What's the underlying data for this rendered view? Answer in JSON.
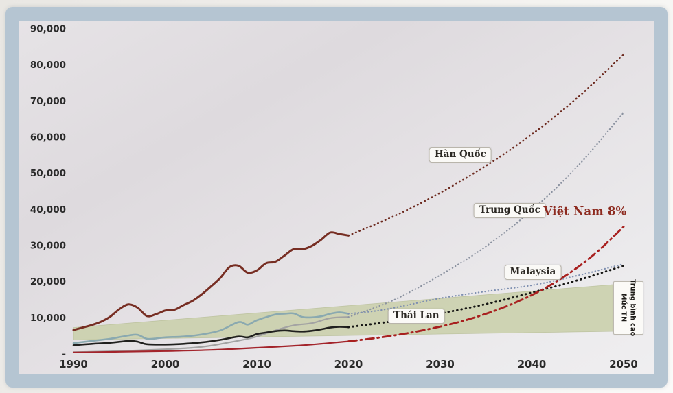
{
  "chart_data": {
    "type": "line",
    "title": "",
    "x_range": [
      1990,
      2050
    ],
    "y_range": [
      0,
      90000
    ],
    "grid": false,
    "legend_position": "inline-annotations",
    "x_ticks": [
      {
        "label": "1990",
        "year": 1990
      },
      {
        "label": "2000",
        "year": 2000
      },
      {
        "label": "2010",
        "year": 2010
      },
      {
        "label": "2020",
        "year": 2020
      },
      {
        "label": "2030",
        "year": 2030
      },
      {
        "label": "2040",
        "year": 2040
      },
      {
        "label": "2050",
        "year": 2050
      }
    ],
    "y_ticks": [
      {
        "label": "90,000",
        "value": 90000
      },
      {
        "label": "80,000",
        "value": 80000
      },
      {
        "label": "70,000",
        "value": 70000
      },
      {
        "label": "60,000",
        "value": 60000
      },
      {
        "label": "50,000",
        "value": 50000
      },
      {
        "label": "40,000",
        "value": 40000
      },
      {
        "label": "30,000",
        "value": 30000
      },
      {
        "label": "20,000",
        "value": 20000
      },
      {
        "label": "10,000",
        "value": 10000
      },
      {
        "label": "-",
        "value": 0
      }
    ],
    "band": {
      "name": "upper-middle-income-band",
      "color": "#c9cfab",
      "edge_color": "#b3ba92",
      "points": [
        [
          1990,
          7300
        ],
        [
          2050,
          19400
        ],
        [
          2050,
          6300
        ],
        [
          1990,
          3900
        ]
      ]
    },
    "series": [
      {
        "id": "korea-history",
        "country": "Hàn Quốc",
        "segment": "history",
        "style": "solid",
        "color": "#76niemals",
        "points": []
      },
      {
        "id": "korea-history",
        "country": "Hàn Quốc",
        "segment": "history",
        "style": "solid",
        "color": "#772e23",
        "width": 3.0,
        "points": [
          [
            1990,
            6600
          ],
          [
            1991,
            7300
          ],
          [
            1992,
            8000
          ],
          [
            1993,
            8900
          ],
          [
            1994,
            10300
          ],
          [
            1995,
            12400
          ],
          [
            1996,
            13700
          ],
          [
            1997,
            12800
          ],
          [
            1998,
            10500
          ],
          [
            1999,
            11000
          ],
          [
            2000,
            12000
          ],
          [
            2001,
            12200
          ],
          [
            2002,
            13500
          ],
          [
            2003,
            14700
          ],
          [
            2004,
            16500
          ],
          [
            2005,
            18700
          ],
          [
            2006,
            21000
          ],
          [
            2007,
            24000
          ],
          [
            2008,
            24400
          ],
          [
            2009,
            22500
          ],
          [
            2010,
            23100
          ],
          [
            2011,
            25100
          ],
          [
            2012,
            25500
          ],
          [
            2013,
            27200
          ],
          [
            2014,
            29000
          ],
          [
            2015,
            29000
          ],
          [
            2016,
            29900
          ],
          [
            2017,
            31600
          ],
          [
            2018,
            33600
          ],
          [
            2019,
            33200
          ],
          [
            2020,
            32800
          ]
        ]
      },
      {
        "id": "korea-projection",
        "country": "Hàn Quốc",
        "segment": "projection",
        "style": "dots",
        "color": "#6d2a1f",
        "width": 2.6,
        "points": [
          [
            2020,
            32800
          ],
          [
            2025,
            38200
          ],
          [
            2030,
            44600
          ],
          [
            2035,
            52100
          ],
          [
            2040,
            60800
          ],
          [
            2045,
            71000
          ],
          [
            2050,
            82900
          ]
        ]
      },
      {
        "id": "china-history",
        "country": "Trung Quốc",
        "segment": "history",
        "style": "solid",
        "color": "#a3a3a3",
        "width": 2.2,
        "points": [
          [
            1990,
            500
          ],
          [
            1995,
            800
          ],
          [
            2000,
            1300
          ],
          [
            2003,
            1700
          ],
          [
            2005,
            2300
          ],
          [
            2007,
            3200
          ],
          [
            2009,
            4200
          ],
          [
            2010,
            4800
          ],
          [
            2012,
            6500
          ],
          [
            2014,
            7900
          ],
          [
            2016,
            8500
          ],
          [
            2018,
            9900
          ],
          [
            2020,
            10200
          ]
        ]
      },
      {
        "id": "china-projection",
        "country": "Trung Quốc",
        "segment": "projection",
        "style": "dots-fine",
        "color": "#8b92a0",
        "width": 2.2,
        "points": [
          [
            2020,
            10200
          ],
          [
            2025,
            15000
          ],
          [
            2030,
            21800
          ],
          [
            2035,
            29800
          ],
          [
            2040,
            39800
          ],
          [
            2045,
            52000
          ],
          [
            2050,
            66800
          ]
        ]
      },
      {
        "id": "malaysia-history",
        "country": "Malaysia",
        "segment": "history",
        "style": "solid",
        "color": "#8aa9b0",
        "width": 2.6,
        "points": [
          [
            1990,
            3000
          ],
          [
            1992,
            3600
          ],
          [
            1994,
            4200
          ],
          [
            1996,
            5100
          ],
          [
            1997,
            5300
          ],
          [
            1998,
            4200
          ],
          [
            1999,
            4300
          ],
          [
            2000,
            4600
          ],
          [
            2002,
            4800
          ],
          [
            2004,
            5400
          ],
          [
            2006,
            6500
          ],
          [
            2008,
            8800
          ],
          [
            2009,
            8100
          ],
          [
            2010,
            9300
          ],
          [
            2012,
            10900
          ],
          [
            2013,
            11100
          ],
          [
            2014,
            11200
          ],
          [
            2015,
            10200
          ],
          [
            2016,
            10100
          ],
          [
            2017,
            10400
          ],
          [
            2018,
            11100
          ],
          [
            2019,
            11500
          ],
          [
            2020,
            11100
          ]
        ]
      },
      {
        "id": "malaysia-projection",
        "country": "Malaysia",
        "segment": "projection",
        "style": "dots-fine",
        "color": "#7e8fb0",
        "width": 2.2,
        "points": [
          [
            2020,
            11100
          ],
          [
            2023,
            11900
          ],
          [
            2026,
            13300
          ],
          [
            2030,
            15400
          ],
          [
            2035,
            17300
          ],
          [
            2040,
            19000
          ],
          [
            2045,
            21700
          ],
          [
            2050,
            24900
          ]
        ]
      },
      {
        "id": "thailand-history",
        "country": "Thái Lan",
        "segment": "history",
        "style": "solid",
        "color": "#20201e",
        "width": 2.6,
        "points": [
          [
            1990,
            2400
          ],
          [
            1992,
            2800
          ],
          [
            1994,
            3100
          ],
          [
            1996,
            3600
          ],
          [
            1997,
            3400
          ],
          [
            1998,
            2700
          ],
          [
            2000,
            2600
          ],
          [
            2002,
            2800
          ],
          [
            2004,
            3200
          ],
          [
            2006,
            3900
          ],
          [
            2008,
            4800
          ],
          [
            2009,
            4600
          ],
          [
            2010,
            5500
          ],
          [
            2011,
            5900
          ],
          [
            2012,
            6300
          ],
          [
            2013,
            6500
          ],
          [
            2014,
            6300
          ],
          [
            2015,
            6200
          ],
          [
            2016,
            6400
          ],
          [
            2017,
            6800
          ],
          [
            2018,
            7300
          ],
          [
            2019,
            7500
          ],
          [
            2020,
            7400
          ]
        ]
      },
      {
        "id": "thailand-projection",
        "country": "Thái Lan",
        "segment": "projection",
        "style": "dots-bold",
        "color": "#161614",
        "width": 3.0,
        "points": [
          [
            2020,
            7400
          ],
          [
            2025,
            9100
          ],
          [
            2030,
            11200
          ],
          [
            2035,
            13800
          ],
          [
            2040,
            17000
          ],
          [
            2045,
            20400
          ],
          [
            2050,
            24400
          ]
        ]
      },
      {
        "id": "vietnam-history",
        "country": "Việt Nam",
        "segment": "history",
        "style": "solid",
        "color": "#a3242b",
        "width": 2.2,
        "points": [
          [
            1990,
            400
          ],
          [
            1995,
            600
          ],
          [
            2000,
            800
          ],
          [
            2005,
            1100
          ],
          [
            2010,
            1700
          ],
          [
            2015,
            2400
          ],
          [
            2020,
            3500
          ]
        ]
      },
      {
        "id": "vietnam-projection-8pct",
        "country": "Việt Nam 8%",
        "segment": "projection",
        "style": "dashdot",
        "color": "#a8201f",
        "width": 2.9,
        "points": [
          [
            2020,
            3500
          ],
          [
            2023,
            4400
          ],
          [
            2026,
            5550
          ],
          [
            2029,
            7000
          ],
          [
            2032,
            8800
          ],
          [
            2035,
            11100
          ],
          [
            2038,
            14000
          ],
          [
            2041,
            17600
          ],
          [
            2044,
            22200
          ],
          [
            2047,
            28000
          ],
          [
            2050,
            35200
          ]
        ]
      }
    ],
    "annotations": {
      "korea": {
        "label": "Hàn Quốc",
        "type": "box",
        "anchor": [
          2032.2,
          55000
        ]
      },
      "china": {
        "label": "Trung Quốc",
        "type": "box",
        "anchor": [
          2037.6,
          39600
        ]
      },
      "vietnam_8": {
        "label": "Việt Nam 8%",
        "type": "text",
        "color": "#8d2a1f",
        "anchor": [
          2045.8,
          39500
        ]
      },
      "malaysia": {
        "label": "Malaysia",
        "type": "box",
        "anchor": [
          2040.1,
          22600
        ]
      },
      "thailand": {
        "label": "Thái Lan",
        "type": "box",
        "anchor": [
          2027.4,
          10450
        ]
      },
      "income_level": {
        "label_lines": [
          "Mức TN",
          "Trung bình cao"
        ],
        "type": "vertical-box",
        "anchor": [
          2050.5,
          12800
        ]
      }
    }
  }
}
